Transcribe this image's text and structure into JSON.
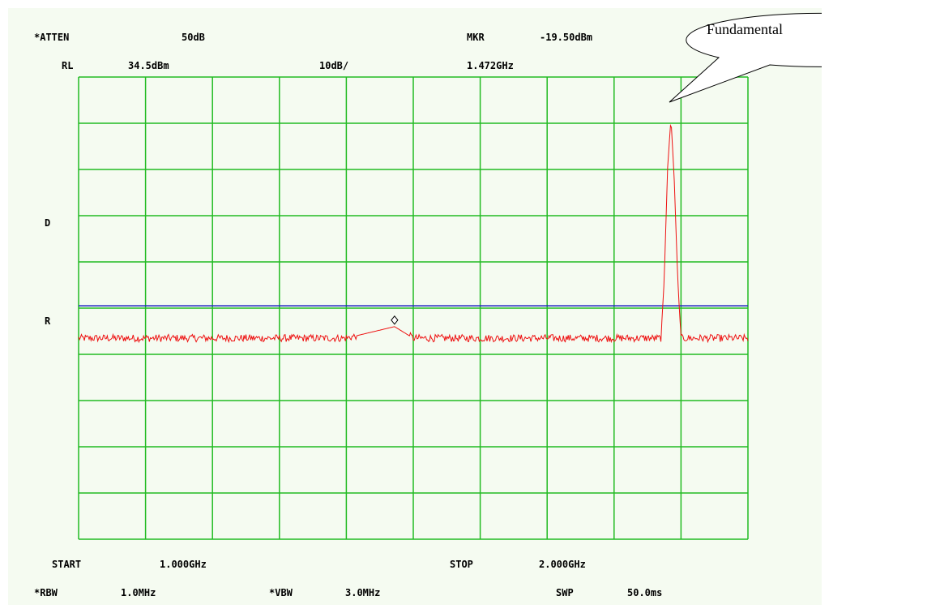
{
  "header": {
    "atten_label": "*ATTEN",
    "atten_value": "50dB",
    "marker_label": "MKR",
    "marker_value": "-19.50dBm",
    "ref_label": "RL",
    "ref_value": "34.5dBm",
    "scale": "10dB/",
    "marker_freq": "1.472GHz"
  },
  "side_labels": {
    "d": "D",
    "r": "R"
  },
  "footer": {
    "start_label": "START",
    "start_value": "1.000GHz",
    "stop_label": "STOP",
    "stop_value": "2.000GHz",
    "rbw_label": "*RBW",
    "rbw_value": "1.0MHz",
    "vbw_label": "*VBW",
    "vbw_value": "3.0MHz",
    "swp_label": "SWP",
    "swp_value": "50.0ms"
  },
  "callout": {
    "text": "Fundamental"
  },
  "colors": {
    "grid": "#22bb22",
    "trace": "#ee1111",
    "display_line": "#1c22c0",
    "background": "#f5fbf1"
  },
  "chart_data": {
    "type": "line",
    "x_range_ghz": [
      1.0,
      2.0
    ],
    "y_range_dbm": [
      -65.5,
      34.5
    ],
    "reference_level_dbm": 34.5,
    "scale_db_per_div": 10,
    "divisions": {
      "x": 10,
      "y": 10
    },
    "display_line_dbm": -15,
    "noise_floor_dbm": -22,
    "marker": {
      "x_ghz": 1.472,
      "y_dbm": -19.5
    },
    "peak": {
      "x_ghz": 1.885,
      "y_dbm": 25.5
    },
    "series": [
      {
        "x_ghz": [
          1.0,
          1.1,
          1.2,
          1.3,
          1.4,
          1.472,
          1.5,
          1.6,
          1.7,
          1.8,
          1.87,
          1.875,
          1.88,
          1.885,
          1.89,
          1.895,
          1.9,
          2.0
        ],
        "y_dbm": [
          -22,
          -22,
          -22,
          -22,
          -22,
          -19.5,
          -22,
          -22,
          -22,
          -22,
          -22,
          -9,
          15,
          25.5,
          12,
          -9,
          -22,
          -22
        ]
      }
    ]
  }
}
